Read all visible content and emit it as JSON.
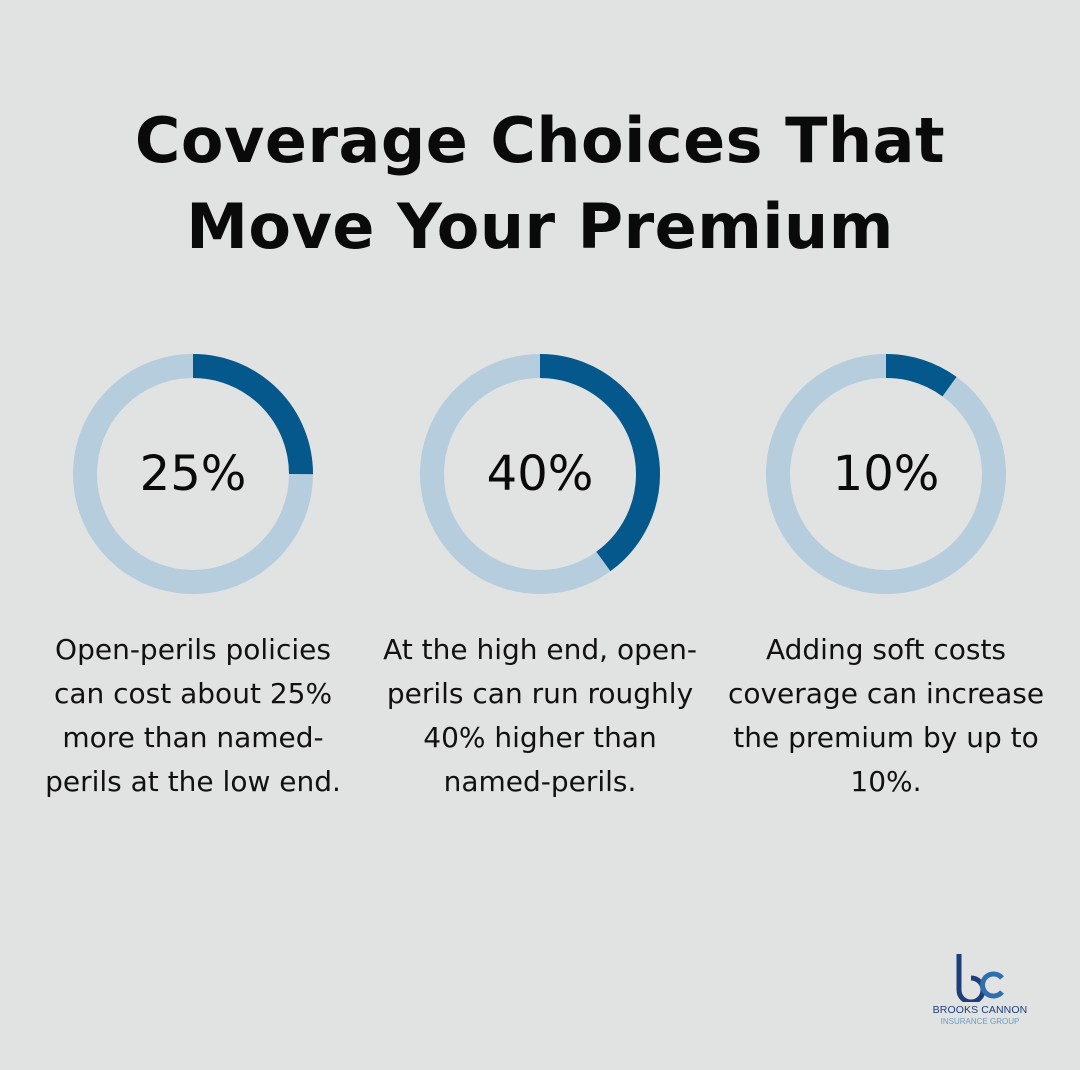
{
  "title": {
    "line1": "Coverage Choices That",
    "line2": "Move Your Premium"
  },
  "colors": {
    "background": "#e1e2e2",
    "track": "#b5cddd",
    "fill": "#04588c",
    "text": "#111111"
  },
  "stats": [
    {
      "value": 25,
      "label": "25%",
      "description": "Open-perils policies can cost about 25% more than named-perils at the low end."
    },
    {
      "value": 40,
      "label": "40%",
      "description": "At the high end, open-perils can run roughly 40% higher than named-perils."
    },
    {
      "value": 10,
      "label": "10%",
      "description": "Adding soft costs coverage can increase the premium by up to 10%."
    }
  ],
  "logo": {
    "mark": "bc",
    "name": "BROOKS CANNON",
    "sub": "INSURANCE GROUP"
  },
  "chart_data": {
    "type": "pie",
    "subtype": "donut",
    "title": "Coverage Choices That Move Your Premium",
    "categories": [
      "Open-perils vs named-perils (low end)",
      "Open-perils vs named-perils (high end)",
      "Soft costs coverage"
    ],
    "values": [
      25,
      40,
      10
    ],
    "unit": "%",
    "legend": "none"
  }
}
